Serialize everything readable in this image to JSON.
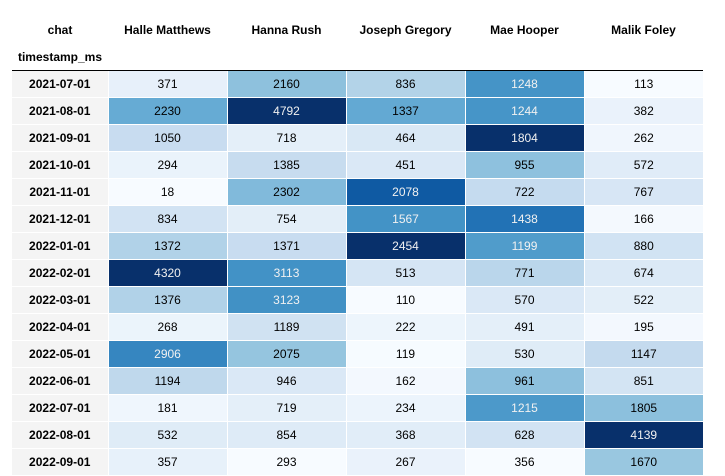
{
  "chart_data": {
    "type": "heatmap",
    "columns_name": "chat",
    "index_name": "timestamp_ms",
    "columns": [
      "Halle Matthews",
      "Hanna Rush",
      "Joseph Gregory",
      "Mae Hooper",
      "Malik Foley"
    ],
    "rows": [
      "2021-07-01",
      "2021-08-01",
      "2021-09-01",
      "2021-10-01",
      "2021-11-01",
      "2021-12-01",
      "2022-01-01",
      "2022-02-01",
      "2022-03-01",
      "2022-04-01",
      "2022-05-01",
      "2022-06-01",
      "2022-07-01",
      "2022-08-01",
      "2022-09-01"
    ],
    "values": [
      [
        371,
        2160,
        836,
        1248,
        113
      ],
      [
        2230,
        4792,
        1337,
        1244,
        382
      ],
      [
        1050,
        718,
        464,
        1804,
        262
      ],
      [
        294,
        1385,
        451,
        955,
        572
      ],
      [
        18,
        2302,
        2078,
        722,
        767
      ],
      [
        834,
        754,
        1567,
        1438,
        166
      ],
      [
        1372,
        1371,
        2454,
        1199,
        880
      ],
      [
        4320,
        3113,
        513,
        771,
        674
      ],
      [
        1376,
        3123,
        110,
        570,
        522
      ],
      [
        268,
        1189,
        222,
        491,
        195
      ],
      [
        2906,
        2075,
        119,
        530,
        1147
      ],
      [
        1194,
        946,
        162,
        961,
        851
      ],
      [
        181,
        719,
        234,
        1215,
        1805
      ],
      [
        532,
        854,
        368,
        628,
        4139
      ],
      [
        357,
        293,
        267,
        356,
        1670
      ]
    ],
    "colormap": "Blues",
    "color_scale": "per-column"
  }
}
